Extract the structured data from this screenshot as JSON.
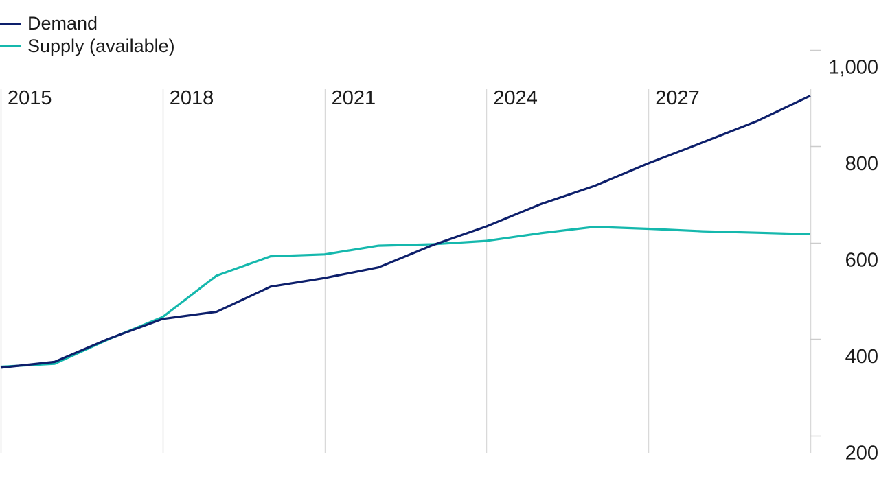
{
  "chart_data": {
    "type": "line",
    "title": "",
    "xlabel": "",
    "ylabel": "",
    "x": [
      2015,
      2016,
      2017,
      2018,
      2019,
      2020,
      2021,
      2022,
      2023,
      2024,
      2025,
      2026,
      2027,
      2028,
      2029,
      2030
    ],
    "x_ticks": [
      "2015",
      "2018",
      "2021",
      "2024",
      "2027"
    ],
    "y_ticks": [
      "200",
      "400",
      "600",
      "800",
      "1,000"
    ],
    "xlim": [
      2015,
      2030
    ],
    "ylim": [
      200,
      1000
    ],
    "grid": "vertical",
    "legend_position": "top-left",
    "series": [
      {
        "name": "Demand",
        "color": "#0d1f6b",
        "values": [
          376,
          388,
          436,
          477,
          492,
          544,
          562,
          584,
          630,
          669,
          715,
          753,
          800,
          843,
          887,
          940
        ]
      },
      {
        "name": "Supply (available)",
        "color": "#15b8ad",
        "values": [
          378,
          384,
          435,
          481,
          567,
          607,
          611,
          629,
          632,
          639,
          655,
          668,
          664,
          659,
          656,
          653
        ]
      }
    ]
  }
}
